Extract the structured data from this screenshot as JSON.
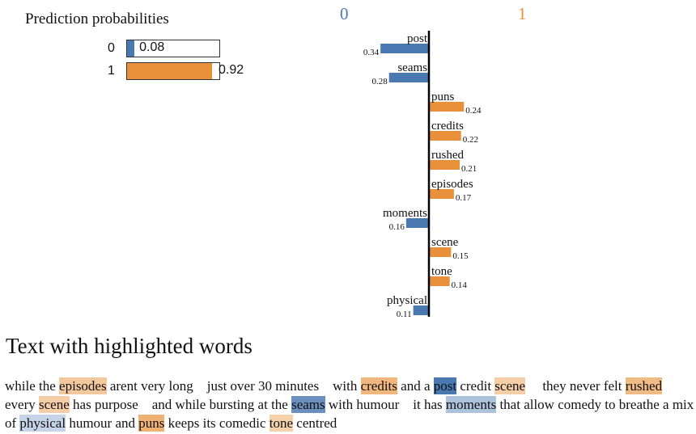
{
  "prediction": {
    "title": "Prediction probabilities",
    "classes": [
      {
        "label": "0",
        "value": 0.08,
        "display": "0.08",
        "color": "#4a78b0"
      },
      {
        "label": "1",
        "value": 0.92,
        "display": "0.92",
        "color": "#e8913a"
      }
    ]
  },
  "chart_data": {
    "type": "bar",
    "orientation": "horizontal",
    "class_labels": [
      {
        "label": "0",
        "color": "#4a78b0"
      },
      {
        "label": "1",
        "color": "#e8913a"
      }
    ],
    "features": [
      {
        "word": "post",
        "weight": 0.34,
        "display": "0.34",
        "class": 0
      },
      {
        "word": "seams",
        "weight": 0.28,
        "display": "0.28",
        "class": 0
      },
      {
        "word": "puns",
        "weight": 0.24,
        "display": "0.24",
        "class": 1
      },
      {
        "word": "credits",
        "weight": 0.22,
        "display": "0.22",
        "class": 1
      },
      {
        "word": "rushed",
        "weight": 0.21,
        "display": "0.21",
        "class": 1
      },
      {
        "word": "episodes",
        "weight": 0.17,
        "display": "0.17",
        "class": 1
      },
      {
        "word": "moments",
        "weight": 0.16,
        "display": "0.16",
        "class": 0
      },
      {
        "word": "scene",
        "weight": 0.15,
        "display": "0.15",
        "class": 1
      },
      {
        "word": "tone",
        "weight": 0.14,
        "display": "0.14",
        "class": 1
      },
      {
        "word": "physical",
        "weight": 0.11,
        "display": "0.11",
        "class": 0
      }
    ]
  },
  "text_section": {
    "title": "Text with highlighted words",
    "tokens": [
      {
        "t": "while the "
      },
      {
        "t": "episodes",
        "c": 1,
        "s": 0.5
      },
      {
        "t": " arent very long    just over 30 minutes    with "
      },
      {
        "t": "credits",
        "c": 1,
        "s": 0.65
      },
      {
        "t": " and a "
      },
      {
        "t": "post",
        "c": 0,
        "s": 1.0
      },
      {
        "t": " credit "
      },
      {
        "t": "scene",
        "c": 1,
        "s": 0.45
      },
      {
        "t": "     they never felt "
      },
      {
        "t": "rushed",
        "c": 1,
        "s": 0.62
      },
      {
        "t": " every "
      },
      {
        "t": "scene",
        "c": 1,
        "s": 0.45
      },
      {
        "t": " has purpose    and while bursting at the "
      },
      {
        "t": "seams",
        "c": 0,
        "s": 0.82
      },
      {
        "t": " with humour    it has "
      },
      {
        "t": "moments",
        "c": 0,
        "s": 0.45
      },
      {
        "t": " that allow comedy to breathe a mix of "
      },
      {
        "t": "physical",
        "c": 0,
        "s": 0.32
      },
      {
        "t": " humour and "
      },
      {
        "t": "puns",
        "c": 1,
        "s": 0.7
      },
      {
        "t": " keeps its comedic "
      },
      {
        "t": "tone",
        "c": 1,
        "s": 0.42
      },
      {
        "t": " centred"
      }
    ]
  }
}
